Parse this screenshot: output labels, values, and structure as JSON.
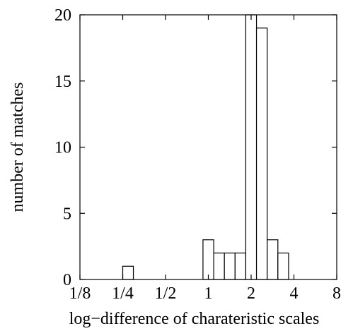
{
  "chart_data": {
    "type": "bar",
    "xlabel": "log−difference of charateristic scales",
    "ylabel": "number of matches",
    "x_scale": "log2",
    "xlim": [
      0.125,
      8
    ],
    "ylim": [
      0,
      20
    ],
    "x_ticks": [
      {
        "value": 0.125,
        "label": "1/8"
      },
      {
        "value": 0.25,
        "label": "1/4"
      },
      {
        "value": 0.5,
        "label": "1/2"
      },
      {
        "value": 1,
        "label": "1"
      },
      {
        "value": 2,
        "label": "2"
      },
      {
        "value": 4,
        "label": "4"
      },
      {
        "value": 8,
        "label": "8"
      }
    ],
    "y_ticks": [
      {
        "value": 0,
        "label": "0"
      },
      {
        "value": 5,
        "label": "5"
      },
      {
        "value": 10,
        "label": "10"
      },
      {
        "value": 15,
        "label": "15"
      },
      {
        "value": 20,
        "label": "20"
      }
    ],
    "grid": false,
    "bin_width_log2": 0.25,
    "bins": [
      {
        "x_start": 0.25,
        "x_end": 0.297,
        "count": 1
      },
      {
        "x_start": 0.917,
        "x_end": 1.091,
        "count": 3
      },
      {
        "x_start": 1.091,
        "x_end": 1.297,
        "count": 2
      },
      {
        "x_start": 1.297,
        "x_end": 1.542,
        "count": 2
      },
      {
        "x_start": 1.542,
        "x_end": 1.834,
        "count": 2
      },
      {
        "x_start": 1.834,
        "x_end": 2.181,
        "count": 20
      },
      {
        "x_start": 2.181,
        "x_end": 2.594,
        "count": 19
      },
      {
        "x_start": 2.594,
        "x_end": 3.084,
        "count": 3
      },
      {
        "x_start": 3.084,
        "x_end": 3.668,
        "count": 2
      }
    ]
  }
}
